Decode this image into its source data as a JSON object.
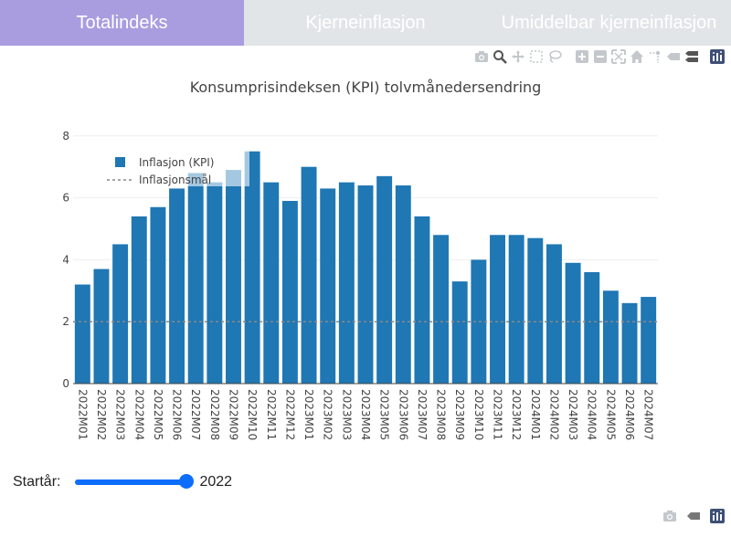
{
  "tabs": [
    {
      "label": "Totalindeks",
      "active": true
    },
    {
      "label": "Kjerneinflasjon",
      "active": false
    },
    {
      "label": "Umiddelbar kjerneinflasjon",
      "active": false
    }
  ],
  "colors": {
    "tab_active": "#a99de0",
    "tab_inactive": "#e2e5e8",
    "bar": "#1f77b4",
    "target_line": "#888888",
    "slider": "#0d6efd"
  },
  "modebar_icons": [
    "camera-icon",
    "zoom-icon",
    "pan-icon",
    "box-select-icon",
    "lasso-icon",
    "zoom-in-icon",
    "zoom-out-icon",
    "autoscale-icon",
    "home-icon",
    "spike-lines-icon",
    "hover-closest-icon",
    "hover-compare-icon",
    "plotly-logo-icon"
  ],
  "modebar_bottom_icons": [
    "camera-icon",
    "hover-closest-icon",
    "plotly-logo-icon"
  ],
  "slider": {
    "label": "Startår:",
    "value": "2022",
    "fraction": 1.0
  },
  "chart_data": {
    "type": "bar",
    "title": "Konsumprisindeksen (KPI) tolvmånedersendring",
    "xlabel": "",
    "ylabel": "",
    "ylim": [
      0,
      8.2
    ],
    "yticks": [
      "0",
      "2",
      "4",
      "6",
      "8"
    ],
    "grid": true,
    "legend_position": "top-left",
    "categories": [
      "2022M01",
      "2022M02",
      "2022M03",
      "2022M04",
      "2022M05",
      "2022M06",
      "2022M07",
      "2022M08",
      "2022M09",
      "2022M10",
      "2022M11",
      "2022M12",
      "2023M01",
      "2023M02",
      "2023M03",
      "2023M04",
      "2023M05",
      "2023M06",
      "2023M07",
      "2023M08",
      "2023M09",
      "2023M10",
      "2023M11",
      "2023M12",
      "2024M01",
      "2024M02",
      "2024M03",
      "2024M04",
      "2024M05",
      "2024M06",
      "2024M07"
    ],
    "series": [
      {
        "name": "Inflasjon (KPI)",
        "type": "bar",
        "values": [
          3.2,
          3.7,
          4.5,
          5.4,
          5.7,
          6.3,
          6.8,
          6.5,
          6.9,
          7.5,
          6.5,
          5.9,
          7.0,
          6.3,
          6.5,
          6.4,
          6.7,
          6.4,
          5.4,
          4.8,
          3.3,
          4.0,
          4.8,
          4.8,
          4.7,
          4.5,
          3.9,
          3.6,
          3.0,
          2.6,
          2.8
        ]
      },
      {
        "name": "Inflasjonsmål",
        "type": "line",
        "style": "dotted",
        "value": 2
      }
    ]
  }
}
